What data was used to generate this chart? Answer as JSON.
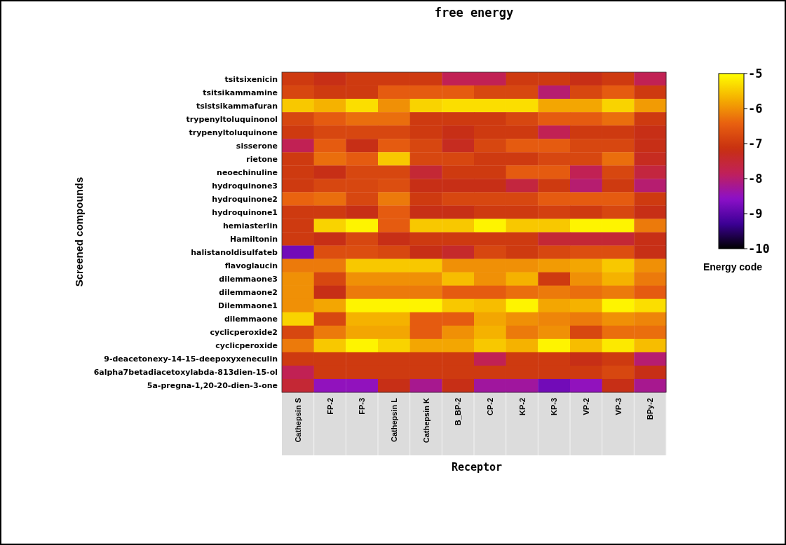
{
  "chart_data": {
    "type": "heatmap",
    "title": "free energy",
    "xlabel": "Receptor",
    "ylabel": "Screened compounds",
    "clabel": "Energy code",
    "categories": [
      "Cathepsin S",
      "FP-2",
      "FP-3",
      "Cathepsin L",
      "Cathepsin K",
      "B_BP-2",
      "CP-2",
      "KP-2",
      "KP-3",
      "VP-2",
      "VP-3",
      "BPy-2"
    ],
    "y_categories": [
      "tsitsixenicin",
      "tsitsikammamine",
      "tsistsikammafuran",
      "trypenyltoluquinonol",
      "trypenyltoluquinone",
      "sisserone",
      "rietone",
      "neoechinuline",
      "hydroquinone3",
      "hydroquinone2",
      "hydroquinone1",
      "hemiasterlin",
      "Hamiltonin",
      "halistanoldisulfateb",
      "flavoglaucin",
      "dilemmaone3",
      "dilemmaone2",
      "Dilemmaone1",
      "dilemmaone",
      "cyclicperoxide2",
      "cyclicperoxide",
      "9-deacetonexy-14-15-deepoxyxeneculin",
      "6alpha7betadiacetoxylabda-813dien-15-ol",
      "5a-pregna-1,20-20-dien-3-one"
    ],
    "cells": [
      [
        -7,
        -7.2,
        -7,
        -7,
        -7,
        -7.8,
        -7.8,
        -7,
        -7,
        -7.2,
        -7,
        -7.8
      ],
      [
        -6.8,
        -7,
        -7,
        -6.5,
        -6.5,
        -6.5,
        -6.8,
        -6.8,
        -8,
        -6.8,
        -6.5,
        -7
      ],
      [
        -5.5,
        -5.7,
        -5.3,
        -6,
        -5.4,
        -5.3,
        -5.3,
        -5.3,
        -5.8,
        -5.8,
        -5.4,
        -5.9
      ],
      [
        -6.8,
        -6.5,
        -6.3,
        -6.3,
        -7,
        -7,
        -7,
        -6.8,
        -6.5,
        -6.5,
        -6.3,
        -7
      ],
      [
        -7,
        -6.8,
        -6.8,
        -6.8,
        -7,
        -7.2,
        -7,
        -7,
        -7.8,
        -7,
        -7,
        -7.2
      ],
      [
        -7.8,
        -6.5,
        -7.2,
        -6.5,
        -6.8,
        -7.3,
        -6.8,
        -6.5,
        -6.5,
        -6.8,
        -6.8,
        -7.2
      ],
      [
        -7,
        -6.3,
        -6.5,
        -5.5,
        -6.8,
        -6.8,
        -7,
        -7,
        -6.8,
        -6.8,
        -6.3,
        -7.3
      ],
      [
        -7,
        -7.2,
        -6.8,
        -6.8,
        -7.5,
        -7,
        -7,
        -6.5,
        -6.5,
        -7.8,
        -6.8,
        -7.6
      ],
      [
        -7,
        -6.8,
        -6.8,
        -6.7,
        -7.2,
        -7.2,
        -7.2,
        -7.6,
        -7,
        -8,
        -7,
        -8
      ],
      [
        -6.4,
        -6.3,
        -6.8,
        -6.2,
        -7,
        -6.8,
        -6.8,
        -6.8,
        -6.5,
        -6.5,
        -6.5,
        -7
      ],
      [
        -7,
        -7,
        -7.2,
        -6.5,
        -7.2,
        -7.2,
        -7,
        -7,
        -6.9,
        -7,
        -6.8,
        -7.2
      ],
      [
        -7,
        -5.4,
        -5.1,
        -6.5,
        -5.5,
        -5.5,
        -5.1,
        -5.5,
        -5.5,
        -5.1,
        -5.1,
        -6.2
      ],
      [
        -7,
        -7.2,
        -6.8,
        -7.2,
        -7,
        -7,
        -7,
        -7,
        -7.5,
        -7.5,
        -7.5,
        -7.2
      ],
      [
        -8.8,
        -6.7,
        -6.7,
        -6.8,
        -7.2,
        -7.4,
        -6.8,
        -7,
        -6.8,
        -6.7,
        -6.7,
        -7.2
      ],
      [
        -6.2,
        -6.2,
        -5.5,
        -5.5,
        -5.5,
        -6,
        -6,
        -6,
        -5.9,
        -5.8,
        -5.5,
        -6
      ],
      [
        -6,
        -6.8,
        -6,
        -6,
        -6,
        -5.6,
        -6,
        -5.7,
        -7,
        -6,
        -5.7,
        -6.2
      ],
      [
        -6,
        -7.2,
        -6.2,
        -6.2,
        -6.2,
        -6.5,
        -6.5,
        -6.3,
        -6.2,
        -6.3,
        -6.2,
        -6.5
      ],
      [
        -6,
        -5.8,
        -5.1,
        -5.1,
        -5.1,
        -5.5,
        -5.6,
        -5.1,
        -5.8,
        -5.7,
        -5.1,
        -5.3
      ],
      [
        -5.4,
        -6.8,
        -5.7,
        -5.7,
        -6.5,
        -6.5,
        -5.8,
        -6,
        -6.1,
        -6.2,
        -6,
        -6.1
      ],
      [
        -6.8,
        -6.2,
        -5.8,
        -5.8,
        -6.5,
        -6,
        -5.7,
        -6.2,
        -6,
        -6.8,
        -6.3,
        -6.3
      ],
      [
        -6.2,
        -5.5,
        -5.1,
        -5.4,
        -5.8,
        -5.8,
        -5.5,
        -5.7,
        -5.1,
        -5.6,
        -5.2,
        -5.6
      ],
      [
        -7,
        -7,
        -7,
        -7,
        -7,
        -7,
        -7.8,
        -7,
        -7,
        -7.2,
        -7,
        -8
      ],
      [
        -7.8,
        -7,
        -7,
        -7,
        -7,
        -7,
        -7,
        -7,
        -7,
        -7,
        -6.8,
        -7.2
      ],
      [
        -7.5,
        -8.5,
        -8.5,
        -7.2,
        -8.2,
        -7.2,
        -8.3,
        -8.3,
        -8.8,
        -8.5,
        -7.2,
        -8.2
      ]
    ],
    "clim": [
      -10,
      -5
    ],
    "cticks": [
      -5,
      -6,
      -7,
      -8,
      -9,
      -10
    ]
  }
}
